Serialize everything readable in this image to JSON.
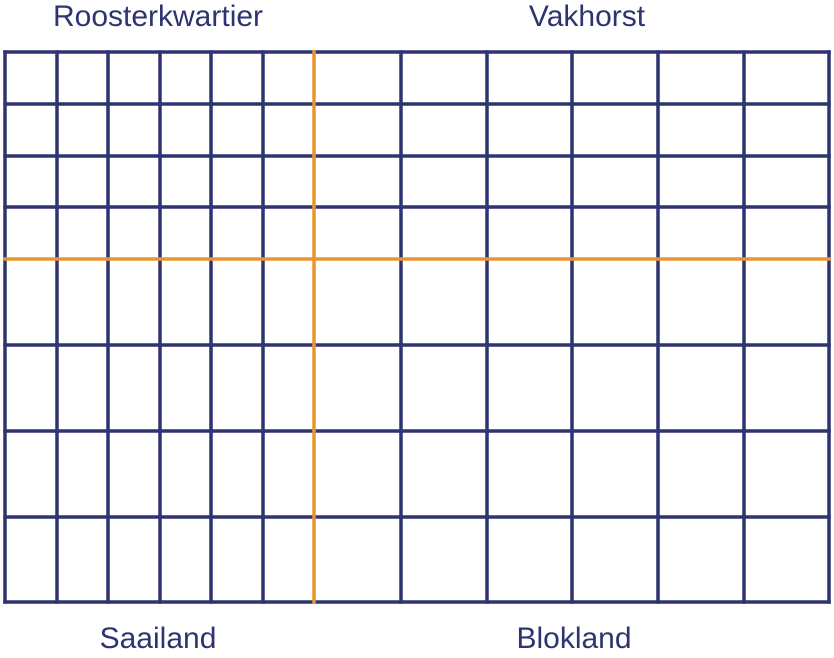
{
  "regions": {
    "top_left": "Roosterkwartier",
    "top_right": "Vakhorst",
    "bottom_left": "Saailand",
    "bottom_right": "Blokland"
  },
  "colors": {
    "grid_line": "#2e3470",
    "divider_line": "#e8952f",
    "label_text": "#2e3470"
  }
}
